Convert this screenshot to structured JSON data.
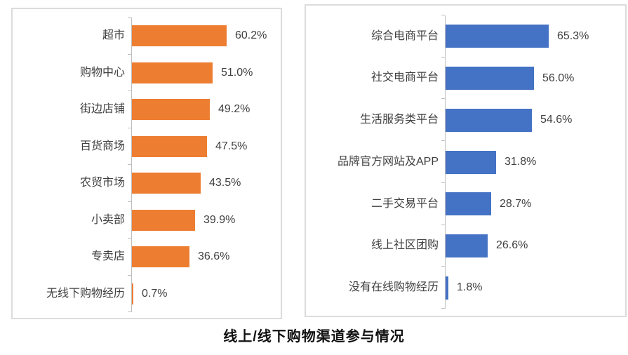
{
  "title": "线上/线下购物渠道参与情况",
  "colors": {
    "offline_bar": "#ED7D31",
    "online_bar": "#4472C4",
    "axis": "#BFBFBF",
    "label_text": "#404040",
    "panel_border": "#DCDCDC"
  },
  "chart_data": [
    {
      "type": "bar",
      "orientation": "horizontal",
      "bar_color": "#ED7D31",
      "legend": "none",
      "grid": false,
      "value_axis_labels_visible": false,
      "categories": [
        "超市",
        "购物中心",
        "街边店铺",
        "百货商场",
        "农贸市场",
        "小卖部",
        "专卖店",
        "无线下购物经历"
      ],
      "values": [
        60.2,
        51.0,
        49.2,
        47.5,
        43.5,
        39.9,
        36.6,
        0.7
      ],
      "value_labels": [
        "60.2%",
        "51.0%",
        "49.2%",
        "47.5%",
        "43.5%",
        "39.9%",
        "36.6%",
        "0.7%"
      ]
    },
    {
      "type": "bar",
      "orientation": "horizontal",
      "bar_color": "#4472C4",
      "legend": "none",
      "grid": false,
      "value_axis_labels_visible": false,
      "categories": [
        "综合电商平台",
        "社交电商平台",
        "生活服务类平台",
        "品牌官方网站及APP",
        "二手交易平台",
        "线上社区团购",
        "没有在线购物经历"
      ],
      "values": [
        65.3,
        56.0,
        54.6,
        31.8,
        28.7,
        26.6,
        1.8
      ],
      "value_labels": [
        "65.3%",
        "56.0%",
        "54.6%",
        "31.8%",
        "28.7%",
        "26.6%",
        "1.8%"
      ]
    }
  ]
}
